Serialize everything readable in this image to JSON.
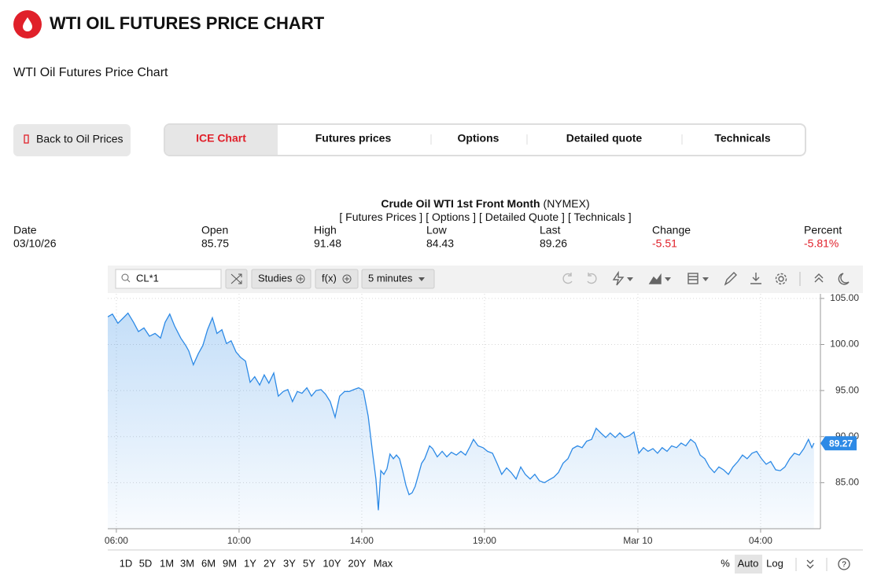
{
  "header": {
    "title": "WTI OIL FUTURES PRICE CHART",
    "subtitle": "WTI Oil Futures Price Chart"
  },
  "back_button": "Back to Oil Prices",
  "tabs": [
    "ICE Chart",
    "Futures prices",
    "Options",
    "Detailed quote",
    "Technicals"
  ],
  "quote": {
    "title": "Crude Oil WTI 1st Front Month",
    "exchange": "(NYMEX)",
    "links": [
      "[ Futures Prices ]",
      "[ Options ]",
      "[ Detailed Quote ]",
      "[ Technicals ]"
    ],
    "columns": [
      "Date",
      "Open",
      "High",
      "Low",
      "Last",
      "Change",
      "Percent"
    ],
    "values": [
      "03/10/26",
      "85.75",
      "91.48",
      "84.43",
      "89.26",
      "-5.51",
      "-5.81%"
    ]
  },
  "toolbar": {
    "symbol": "CL*1",
    "studies": "Studies",
    "fx": "f(x)",
    "interval": "5 minutes"
  },
  "ranges": [
    "1D",
    "5D",
    "1M",
    "3M",
    "6M",
    "9M",
    "1Y",
    "2Y",
    "3Y",
    "5Y",
    "10Y",
    "20Y",
    "Max"
  ],
  "scale_options": [
    "%",
    "Auto",
    "Log"
  ],
  "chart_data": {
    "type": "line",
    "color": "#2d8ae6",
    "grid": true,
    "x": [
      -0.28,
      -0.13,
      0.05,
      0.23,
      0.38,
      0.56,
      0.72,
      0.9,
      1.08,
      1.26,
      1.44,
      1.59,
      1.74,
      1.9,
      2.1,
      2.26,
      2.36,
      2.51,
      2.67,
      2.82,
      2.97,
      3.13,
      3.28,
      3.44,
      3.59,
      3.74,
      3.9,
      4.05,
      4.21,
      4.36,
      4.51,
      4.67,
      4.82,
      4.97,
      5.13,
      5.28,
      5.44,
      5.59,
      5.74,
      5.9,
      6.05,
      6.21,
      6.36,
      6.51,
      6.67,
      6.82,
      6.97,
      7.13,
      7.28,
      7.44,
      7.59,
      7.74,
      7.9,
      8.05,
      8.21,
      8.36,
      8.46,
      8.54,
      8.62,
      8.72,
      8.82,
      8.92,
      9.03,
      9.13,
      9.23,
      9.33,
      9.44,
      9.54,
      9.64,
      9.74,
      9.85,
      9.95,
      10.05,
      10.21,
      10.31,
      10.46,
      10.62,
      10.77,
      10.92,
      11.08,
      11.23,
      11.38,
      11.54,
      11.64,
      11.79,
      11.95,
      12.1,
      12.26,
      12.41,
      12.56,
      12.72,
      12.87,
      13.03,
      13.18,
      13.33,
      13.49,
      13.64,
      13.79,
      13.95,
      14.1,
      14.26,
      14.41,
      14.56,
      14.72,
      14.87,
      15.03,
      15.18,
      15.33,
      15.49,
      15.64,
      15.79,
      15.95,
      16.1,
      16.26,
      16.41,
      16.56,
      16.72,
      16.87,
      17.03,
      17.18,
      17.33,
      17.49,
      17.64,
      17.79,
      17.95,
      18.1,
      18.26,
      18.41,
      18.56,
      18.72,
      18.87,
      19.03,
      19.18,
      19.33,
      19.49,
      19.64,
      19.79,
      19.95,
      20.1,
      20.26,
      20.41,
      20.56,
      20.72,
      20.87,
      21.03,
      21.18,
      21.33,
      21.49,
      21.64,
      21.79,
      21.95,
      22.1,
      22.26,
      22.41,
      22.56,
      22.67,
      22.74
    ],
    "values": [
      103.0,
      103.3,
      102.3,
      102.9,
      103.4,
      102.4,
      101.4,
      101.8,
      100.9,
      101.2,
      100.7,
      102.4,
      103.3,
      102.0,
      100.7,
      99.9,
      99.3,
      97.8,
      99.0,
      99.9,
      101.6,
      102.9,
      101.2,
      101.6,
      100.1,
      100.4,
      99.2,
      98.6,
      98.2,
      95.9,
      96.5,
      95.6,
      96.7,
      95.8,
      96.9,
      94.4,
      94.9,
      95.1,
      93.8,
      94.9,
      94.7,
      95.3,
      94.4,
      95.0,
      95.1,
      94.6,
      93.8,
      92.1,
      94.4,
      94.9,
      94.9,
      95.1,
      95.3,
      95.0,
      92.2,
      88.0,
      85.4,
      82.0,
      86.3,
      85.9,
      86.5,
      88.1,
      87.6,
      88.0,
      87.6,
      86.3,
      84.7,
      83.7,
      83.9,
      84.6,
      85.9,
      87.1,
      87.6,
      89.0,
      88.7,
      87.8,
      88.4,
      87.8,
      88.3,
      88.0,
      88.4,
      88.0,
      89.0,
      89.7,
      89.0,
      88.8,
      88.4,
      88.2,
      87.1,
      85.9,
      86.6,
      86.1,
      85.4,
      86.7,
      85.9,
      85.4,
      85.9,
      85.2,
      85.0,
      85.3,
      85.6,
      86.1,
      87.1,
      87.6,
      88.7,
      89.0,
      88.8,
      89.5,
      89.7,
      90.9,
      90.4,
      89.9,
      90.4,
      89.9,
      90.4,
      89.9,
      90.1,
      90.5,
      88.2,
      88.8,
      88.4,
      88.7,
      88.2,
      88.8,
      88.4,
      89.0,
      88.8,
      89.3,
      89.0,
      89.7,
      89.3,
      88.0,
      87.6,
      86.7,
      86.1,
      86.7,
      86.4,
      85.9,
      86.7,
      87.3,
      88.0,
      87.6,
      88.2,
      88.4,
      87.6,
      87.0,
      87.3,
      86.4,
      86.3,
      86.7,
      87.6,
      88.2,
      88.0,
      88.7,
      89.7,
      88.8,
      89.3
    ],
    "last_price": 89.27,
    "xlim": [
      -0.28,
      22.95
    ],
    "xticks": [
      {
        "value": 0,
        "label": "06:00"
      },
      {
        "value": 4,
        "label": "10:00"
      },
      {
        "value": 8,
        "label": "14:00"
      },
      {
        "value": 12,
        "label": "19:00"
      },
      {
        "value": 17,
        "label": "Mar 10"
      },
      {
        "value": 21,
        "label": "04:00"
      }
    ],
    "ylim": [
      80,
      105.5
    ],
    "yticks": [
      {
        "value": 85,
        "label": "85.00"
      },
      {
        "value": 90,
        "label": "90.00"
      },
      {
        "value": 95,
        "label": "95.00"
      },
      {
        "value": 100,
        "label": "100.00"
      },
      {
        "value": 105,
        "label": "105.00"
      }
    ]
  }
}
